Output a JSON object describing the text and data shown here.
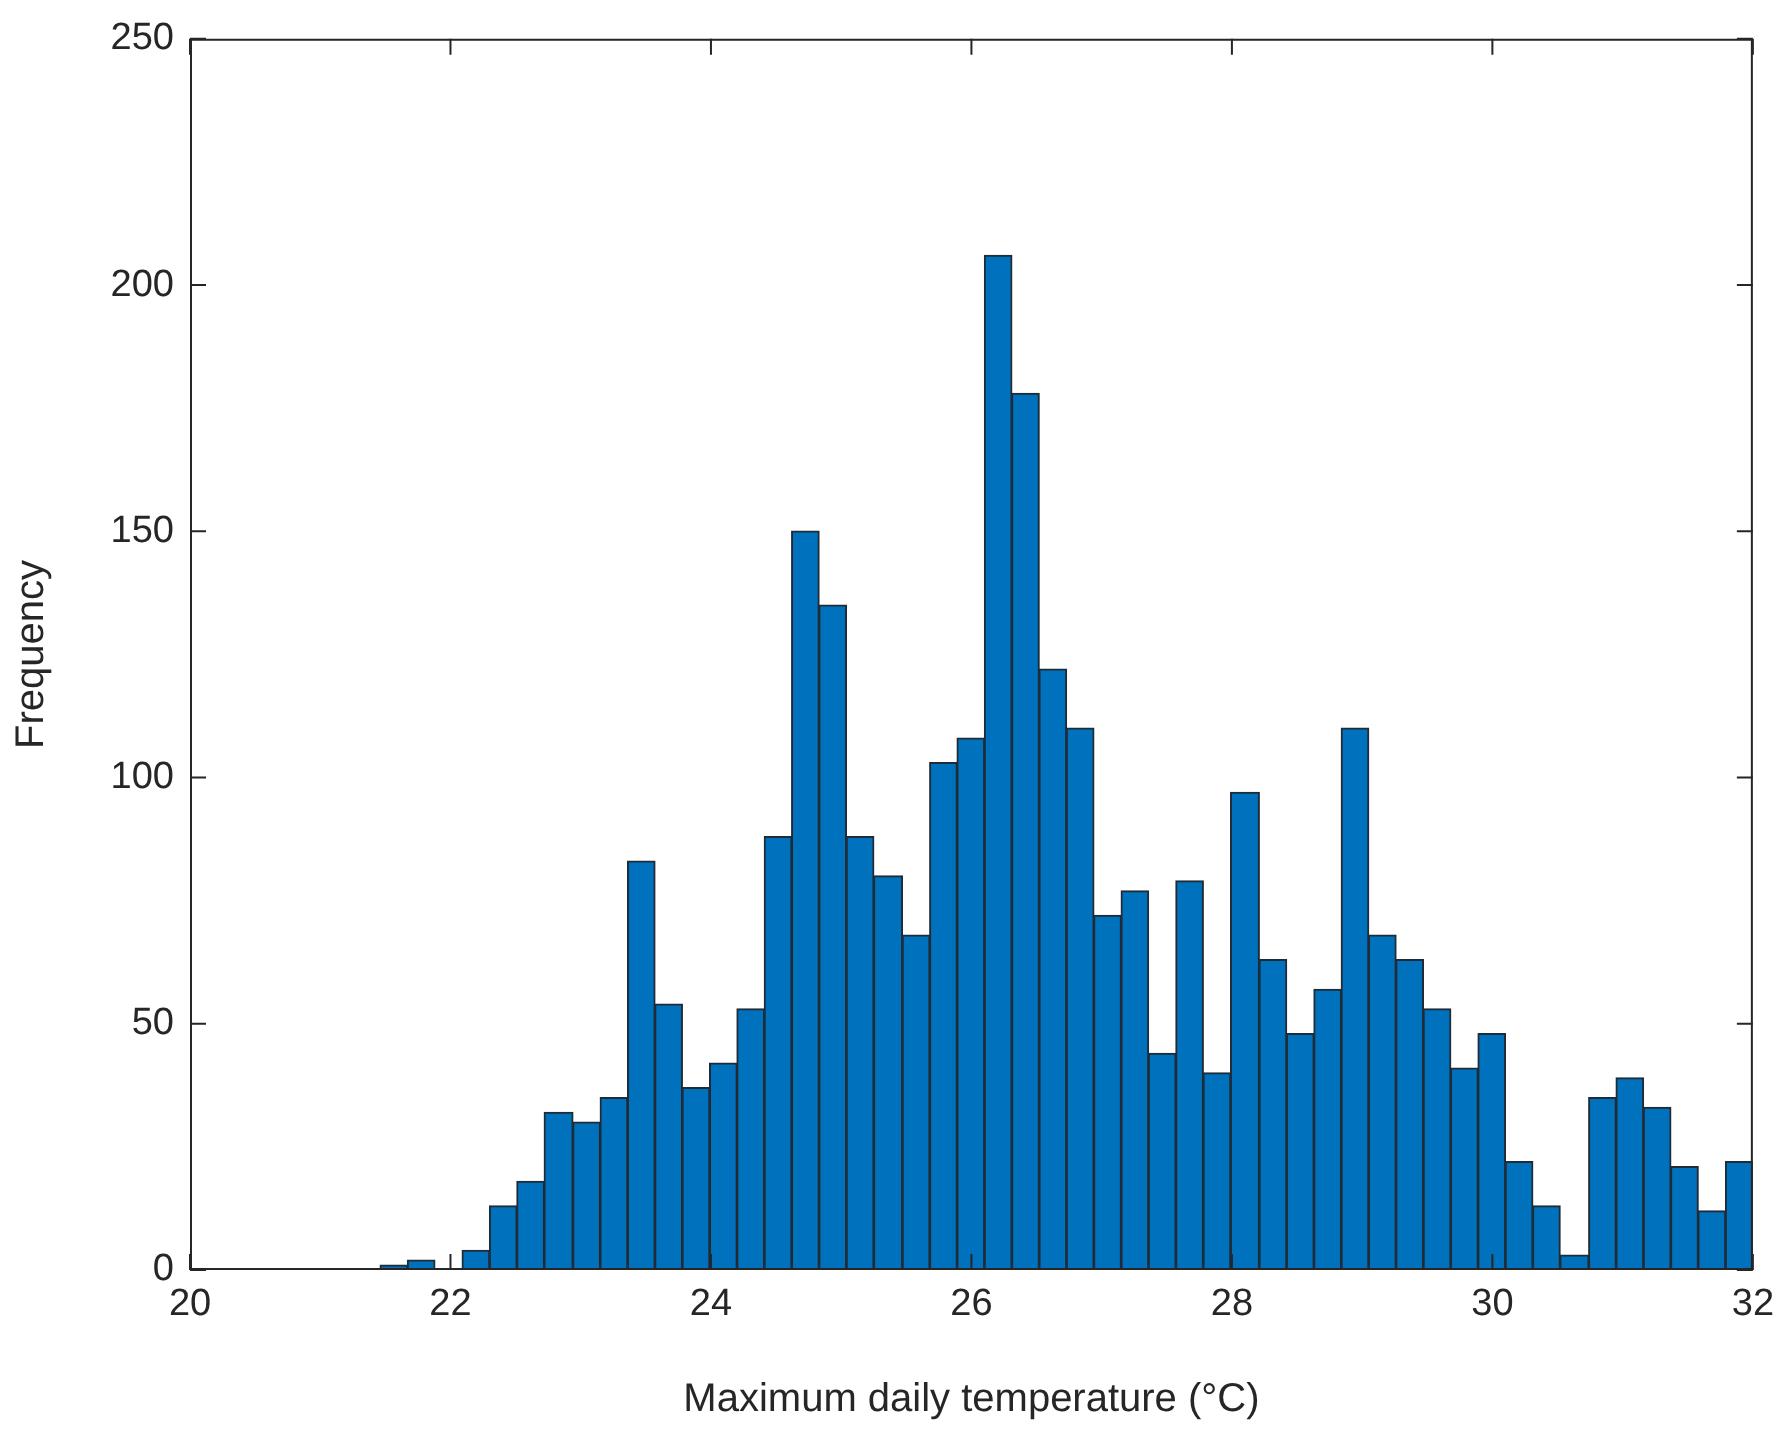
{
  "chart_data": {
    "type": "histogram",
    "xlabel": "Maximum daily temperature (°C)",
    "ylabel": "Frequency",
    "color": "#0072bd",
    "bins": [
      21.46,
      21.67,
      21.88,
      22.09,
      22.3,
      22.51,
      22.72,
      22.94,
      23.15,
      23.36,
      23.57,
      23.78,
      23.99,
      24.2,
      24.41,
      24.62,
      24.83,
      25.04,
      25.25,
      25.47,
      25.68,
      25.89,
      26.1,
      26.31,
      26.52,
      26.73,
      26.94,
      27.15,
      27.36,
      27.57,
      27.78,
      27.99,
      28.21,
      28.42,
      28.63,
      28.84,
      29.05,
      29.26,
      29.47,
      29.68,
      29.89,
      30.1,
      30.31,
      30.52,
      30.74,
      30.95,
      31.16,
      31.37,
      31.58,
      31.79,
      32.0
    ],
    "values": [
      1,
      2,
      0,
      4,
      13,
      18,
      32,
      30,
      35,
      83,
      54,
      37,
      42,
      53,
      88,
      150,
      135,
      88,
      80,
      68,
      103,
      108,
      206,
      178,
      122,
      110,
      72,
      77,
      44,
      79,
      40,
      97,
      63,
      48,
      57,
      110,
      68,
      63,
      53,
      41,
      48,
      22,
      13,
      3,
      35,
      39,
      33,
      21,
      12,
      22
    ],
    "xlim": [
      20,
      32
    ],
    "xticks": [
      20,
      22,
      24,
      26,
      28,
      30,
      32
    ],
    "ylim": [
      0,
      250
    ],
    "yticks": [
      0,
      50,
      100,
      150,
      200,
      250
    ],
    "grid": false
  }
}
